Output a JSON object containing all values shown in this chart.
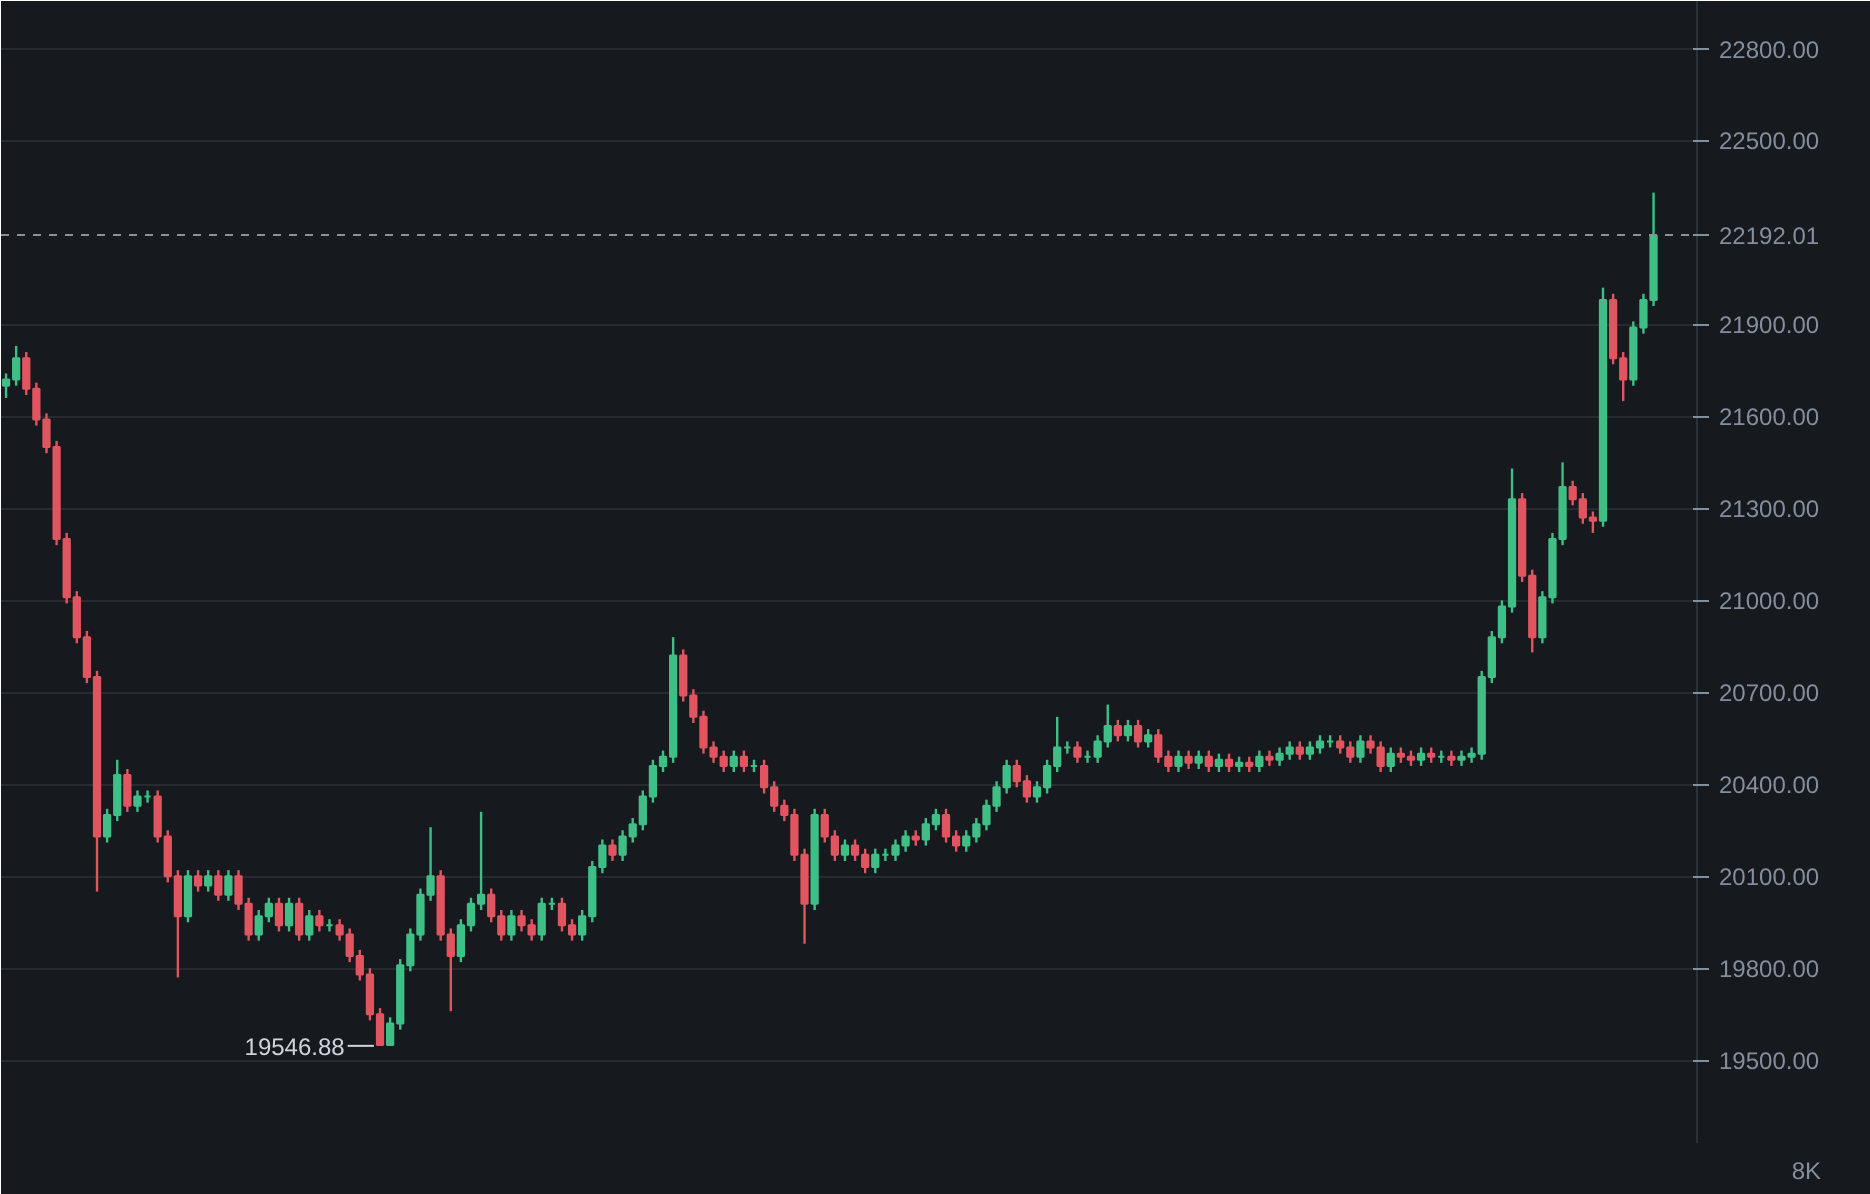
{
  "chart_data": {
    "type": "candlestick",
    "categories": [
      null,
      null,
      null,
      null,
      null,
      null,
      null,
      null,
      null,
      null,
      null,
      null,
      null,
      null,
      null,
      null,
      null,
      null,
      null,
      null,
      null,
      null,
      null,
      null,
      null,
      null,
      null,
      null,
      null,
      null,
      null,
      null,
      null,
      null,
      null,
      null,
      null,
      null,
      null,
      null,
      null,
      null,
      null,
      null,
      null,
      null,
      null,
      null,
      null,
      null,
      null,
      null,
      null,
      null,
      null,
      null,
      null,
      null,
      null,
      null,
      null,
      null,
      null,
      null,
      null,
      null,
      null,
      null,
      null,
      null,
      null,
      null,
      null,
      null,
      null,
      null,
      null,
      null,
      null,
      null,
      null,
      null,
      null,
      null,
      null,
      null,
      null,
      null,
      null,
      null,
      null,
      null,
      null,
      null,
      null,
      null,
      null,
      null,
      null,
      null,
      null,
      null,
      null,
      null,
      null,
      null,
      null,
      null,
      null,
      null,
      null,
      null,
      null,
      null,
      null,
      null,
      null,
      null,
      null,
      null,
      null,
      null,
      null,
      null,
      null,
      null,
      null,
      null,
      null,
      null,
      null,
      null,
      null,
      null,
      null,
      null,
      null,
      null,
      null,
      null,
      null,
      null,
      null,
      null,
      null,
      null,
      null,
      null,
      null,
      null,
      null,
      null,
      null,
      null,
      null,
      null,
      null,
      null,
      null,
      null,
      null,
      null,
      null,
      null
    ],
    "ohlc": [
      [
        21700,
        21740,
        21660,
        21720
      ],
      [
        21720,
        21830,
        21700,
        21790
      ],
      [
        21790,
        21810,
        21670,
        21690
      ],
      [
        21690,
        21710,
        21570,
        21590
      ],
      [
        21590,
        21610,
        21480,
        21500
      ],
      [
        21500,
        21520,
        21180,
        21200
      ],
      [
        21200,
        21220,
        20990,
        21010
      ],
      [
        21010,
        21030,
        20860,
        20880
      ],
      [
        20880,
        20900,
        20730,
        20750
      ],
      [
        20750,
        20770,
        20050,
        20230
      ],
      [
        20230,
        20320,
        20210,
        20300
      ],
      [
        20300,
        20480,
        20280,
        20430
      ],
      [
        20430,
        20450,
        20310,
        20330
      ],
      [
        20330,
        20380,
        20310,
        20360
      ],
      [
        20360,
        20380,
        20340,
        20360
      ],
      [
        20360,
        20380,
        20210,
        20230
      ],
      [
        20230,
        20250,
        20080,
        20100
      ],
      [
        20100,
        20120,
        19770,
        19970
      ],
      [
        19970,
        20120,
        19950,
        20100
      ],
      [
        20100,
        20120,
        20050,
        20070
      ],
      [
        20070,
        20120,
        20050,
        20100
      ],
      [
        20100,
        20120,
        20020,
        20040
      ],
      [
        20040,
        20120,
        20020,
        20100
      ],
      [
        20100,
        20120,
        19990,
        20010
      ],
      [
        20010,
        20030,
        19890,
        19910
      ],
      [
        19910,
        19990,
        19890,
        19970
      ],
      [
        19970,
        20030,
        19950,
        20010
      ],
      [
        20010,
        20030,
        19920,
        19940
      ],
      [
        19940,
        20030,
        19920,
        20010
      ],
      [
        20010,
        20030,
        19890,
        19910
      ],
      [
        19910,
        19990,
        19890,
        19970
      ],
      [
        19970,
        19990,
        19920,
        19940
      ],
      [
        19940,
        19960,
        19920,
        19940
      ],
      [
        19940,
        19960,
        19890,
        19910
      ],
      [
        19910,
        19930,
        19820,
        19840
      ],
      [
        19840,
        19860,
        19760,
        19780
      ],
      [
        19780,
        19800,
        19630,
        19650
      ],
      [
        19650,
        19670,
        19546.88,
        19550
      ],
      [
        19550,
        19640,
        19550,
        19620
      ],
      [
        19620,
        19830,
        19600,
        19810
      ],
      [
        19810,
        19930,
        19790,
        19910
      ],
      [
        19910,
        20060,
        19890,
        20040
      ],
      [
        20040,
        20260,
        20020,
        20100
      ],
      [
        20100,
        20120,
        19890,
        19910
      ],
      [
        19910,
        19930,
        19660,
        19840
      ],
      [
        19840,
        19960,
        19820,
        19940
      ],
      [
        19940,
        20030,
        19920,
        20010
      ],
      [
        20010,
        20310,
        19990,
        20040
      ],
      [
        20040,
        20060,
        19950,
        19970
      ],
      [
        19970,
        19990,
        19890,
        19910
      ],
      [
        19910,
        19990,
        19890,
        19970
      ],
      [
        19970,
        19990,
        19920,
        19940
      ],
      [
        19940,
        19960,
        19890,
        19910
      ],
      [
        19910,
        20030,
        19890,
        20010
      ],
      [
        20010,
        20030,
        19990,
        20010
      ],
      [
        20010,
        20030,
        19920,
        19940
      ],
      [
        19940,
        19960,
        19890,
        19910
      ],
      [
        19910,
        19990,
        19890,
        19970
      ],
      [
        19970,
        20150,
        19950,
        20130
      ],
      [
        20130,
        20220,
        20110,
        20200
      ],
      [
        20200,
        20220,
        20150,
        20170
      ],
      [
        20170,
        20250,
        20150,
        20230
      ],
      [
        20230,
        20290,
        20210,
        20270
      ],
      [
        20270,
        20380,
        20250,
        20360
      ],
      [
        20360,
        20480,
        20340,
        20460
      ],
      [
        20460,
        20510,
        20440,
        20490
      ],
      [
        20490,
        20880,
        20470,
        20820
      ],
      [
        20820,
        20840,
        20670,
        20690
      ],
      [
        20690,
        20710,
        20600,
        20620
      ],
      [
        20620,
        20640,
        20500,
        20520
      ],
      [
        20520,
        20540,
        20470,
        20490
      ],
      [
        20490,
        20510,
        20440,
        20460
      ],
      [
        20460,
        20510,
        20440,
        20490
      ],
      [
        20490,
        20510,
        20440,
        20460
      ],
      [
        20460,
        20480,
        20440,
        20460
      ],
      [
        20460,
        20480,
        20370,
        20390
      ],
      [
        20390,
        20410,
        20310,
        20330
      ],
      [
        20330,
        20350,
        20280,
        20300
      ],
      [
        20300,
        20320,
        20150,
        20170
      ],
      [
        20170,
        20190,
        19880,
        20010
      ],
      [
        20010,
        20320,
        19990,
        20300
      ],
      [
        20300,
        20320,
        20210,
        20230
      ],
      [
        20230,
        20250,
        20150,
        20170
      ],
      [
        20170,
        20220,
        20150,
        20200
      ],
      [
        20200,
        20220,
        20150,
        20170
      ],
      [
        20170,
        20190,
        20110,
        20130
      ],
      [
        20130,
        20190,
        20110,
        20170
      ],
      [
        20170,
        20190,
        20150,
        20170
      ],
      [
        20170,
        20220,
        20150,
        20200
      ],
      [
        20200,
        20250,
        20180,
        20230
      ],
      [
        20230,
        20250,
        20200,
        20220
      ],
      [
        20220,
        20290,
        20200,
        20270
      ],
      [
        20270,
        20320,
        20250,
        20300
      ],
      [
        20300,
        20320,
        20210,
        20230
      ],
      [
        20230,
        20250,
        20180,
        20200
      ],
      [
        20200,
        20250,
        20180,
        20230
      ],
      [
        20230,
        20290,
        20210,
        20270
      ],
      [
        20270,
        20350,
        20250,
        20330
      ],
      [
        20330,
        20410,
        20310,
        20390
      ],
      [
        20390,
        20480,
        20370,
        20460
      ],
      [
        20460,
        20480,
        20390,
        20410
      ],
      [
        20410,
        20430,
        20340,
        20360
      ],
      [
        20360,
        20410,
        20340,
        20390
      ],
      [
        20390,
        20480,
        20370,
        20460
      ],
      [
        20460,
        20620,
        20440,
        20520
      ],
      [
        20520,
        20540,
        20500,
        20520
      ],
      [
        20520,
        20540,
        20470,
        20490
      ],
      [
        20490,
        20510,
        20470,
        20490
      ],
      [
        20490,
        20560,
        20470,
        20540
      ],
      [
        20540,
        20660,
        20520,
        20590
      ],
      [
        20590,
        20610,
        20540,
        20560
      ],
      [
        20560,
        20610,
        20540,
        20590
      ],
      [
        20590,
        20610,
        20520,
        20540
      ],
      [
        20540,
        20580,
        20520,
        20560
      ],
      [
        20560,
        20580,
        20470,
        20490
      ],
      [
        20490,
        20510,
        20440,
        20460
      ],
      [
        20460,
        20510,
        20440,
        20490
      ],
      [
        20490,
        20510,
        20450,
        20470
      ],
      [
        20470,
        20510,
        20450,
        20490
      ],
      [
        20490,
        20510,
        20440,
        20460
      ],
      [
        20460,
        20500,
        20440,
        20480
      ],
      [
        20480,
        20500,
        20440,
        20460
      ],
      [
        20460,
        20490,
        20440,
        20470
      ],
      [
        20470,
        20490,
        20440,
        20460
      ],
      [
        20460,
        20510,
        20440,
        20490
      ],
      [
        20490,
        20510,
        20460,
        20480
      ],
      [
        20480,
        20520,
        20460,
        20500
      ],
      [
        20500,
        20540,
        20480,
        20520
      ],
      [
        20520,
        20540,
        20480,
        20500
      ],
      [
        20500,
        20540,
        20480,
        20520
      ],
      [
        20520,
        20560,
        20500,
        20540
      ],
      [
        20540,
        20560,
        20520,
        20540
      ],
      [
        20540,
        20560,
        20500,
        20520
      ],
      [
        20520,
        20540,
        20470,
        20490
      ],
      [
        20490,
        20560,
        20470,
        20540
      ],
      [
        20540,
        20560,
        20500,
        20520
      ],
      [
        20520,
        20540,
        20440,
        20460
      ],
      [
        20460,
        20520,
        20440,
        20500
      ],
      [
        20500,
        20520,
        20470,
        20490
      ],
      [
        20490,
        20510,
        20460,
        20480
      ],
      [
        20480,
        20520,
        20460,
        20500
      ],
      [
        20500,
        20520,
        20470,
        20490
      ],
      [
        20490,
        20510,
        20470,
        20490
      ],
      [
        20490,
        20510,
        20460,
        20480
      ],
      [
        20480,
        20510,
        20460,
        20490
      ],
      [
        20490,
        20520,
        20470,
        20500
      ],
      [
        20500,
        20770,
        20480,
        20750
      ],
      [
        20750,
        20900,
        20730,
        20880
      ],
      [
        20880,
        21000,
        20860,
        20980
      ],
      [
        20980,
        21430,
        20960,
        21330
      ],
      [
        21330,
        21350,
        21060,
        21080
      ],
      [
        21080,
        21100,
        20830,
        20880
      ],
      [
        20880,
        21030,
        20860,
        21010
      ],
      [
        21010,
        21220,
        20990,
        21200
      ],
      [
        21200,
        21450,
        21180,
        21370
      ],
      [
        21370,
        21390,
        21310,
        21330
      ],
      [
        21330,
        21350,
        21250,
        21270
      ],
      [
        21270,
        21290,
        21220,
        21260
      ],
      [
        21260,
        22020,
        21240,
        21980
      ],
      [
        21980,
        22000,
        21770,
        21790
      ],
      [
        21790,
        21810,
        21650,
        21720
      ],
      [
        21720,
        21910,
        21700,
        21890
      ],
      [
        21890,
        22000,
        21870,
        21980
      ],
      [
        21980,
        22330,
        21960,
        22190
      ]
    ],
    "ylim": [
      19230,
      22955
    ],
    "yticks": [
      {
        "value": 19500,
        "label": "19500.00"
      },
      {
        "value": 19800,
        "label": "19800.00"
      },
      {
        "value": 20100,
        "label": "20100.00"
      },
      {
        "value": 20400,
        "label": "20400.00"
      },
      {
        "value": 20700,
        "label": "20700.00"
      },
      {
        "value": 21000,
        "label": "21000.00"
      },
      {
        "value": 21300,
        "label": "21300.00"
      },
      {
        "value": 21600,
        "label": "21600.00"
      },
      {
        "value": 21900,
        "label": "21900.00"
      },
      {
        "value": 22500,
        "label": "22500.00"
      },
      {
        "value": 22800,
        "label": "22800.00"
      }
    ],
    "ref_lines": [
      {
        "axis": "y",
        "value": 22192.01,
        "label": "22192.01",
        "color": "#8a8f98",
        "line_style": "dashed"
      }
    ],
    "annotations": [
      "19546.88",
      "8K"
    ],
    "grid": "y"
  }
}
